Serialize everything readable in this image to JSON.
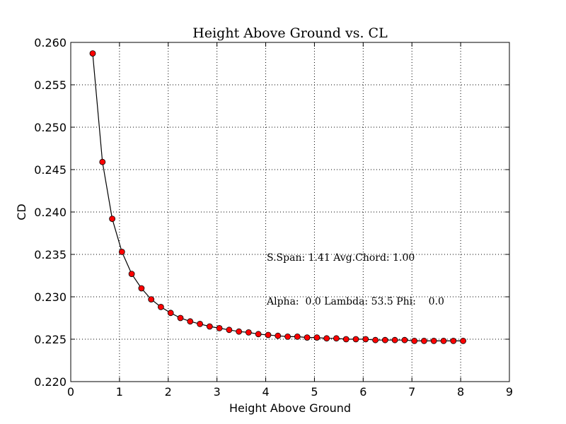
{
  "chart_data": {
    "type": "line",
    "title": "Height Above Ground vs. CL",
    "xlabel": "Height Above Ground",
    "ylabel": "CD",
    "xlim": [
      0,
      9
    ],
    "ylim": [
      0.22,
      0.26
    ],
    "xticks": [
      "0",
      "1",
      "2",
      "3",
      "4",
      "5",
      "6",
      "7",
      "8",
      "9"
    ],
    "yticks": [
      "0.220",
      "0.225",
      "0.230",
      "0.235",
      "0.240",
      "0.245",
      "0.250",
      "0.255",
      "0.260"
    ],
    "grid": true,
    "line_color": "#000000",
    "marker_color": "#ff0000",
    "marker_edge_color": "#000000",
    "annotations": [
      "S.Span: 1.41 Avg.Chord: 1.00",
      "Alpha:  0.0 Lambda: 53.5 Phi:    0.0"
    ],
    "x": [
      0.45,
      0.65,
      0.85,
      1.05,
      1.25,
      1.45,
      1.65,
      1.85,
      2.05,
      2.25,
      2.45,
      2.65,
      2.85,
      3.05,
      3.25,
      3.45,
      3.65,
      3.85,
      4.05,
      4.25,
      4.45,
      4.65,
      4.85,
      5.05,
      5.25,
      5.45,
      5.65,
      5.85,
      6.05,
      6.25,
      6.45,
      6.65,
      6.85,
      7.05,
      7.25,
      7.45,
      7.65,
      7.85,
      8.05
    ],
    "y": [
      0.2587,
      0.2459,
      0.2392,
      0.2353,
      0.2327,
      0.231,
      0.2297,
      0.2288,
      0.2281,
      0.2275,
      0.2271,
      0.2268,
      0.2265,
      0.2263,
      0.2261,
      0.2259,
      0.2258,
      0.2256,
      0.2255,
      0.2254,
      0.2253,
      0.2253,
      0.2252,
      0.2252,
      0.2251,
      0.2251,
      0.225,
      0.225,
      0.225,
      0.2249,
      0.2249,
      0.2249,
      0.2249,
      0.2248,
      0.2248,
      0.2248,
      0.2248,
      0.2248,
      0.2248
    ]
  }
}
